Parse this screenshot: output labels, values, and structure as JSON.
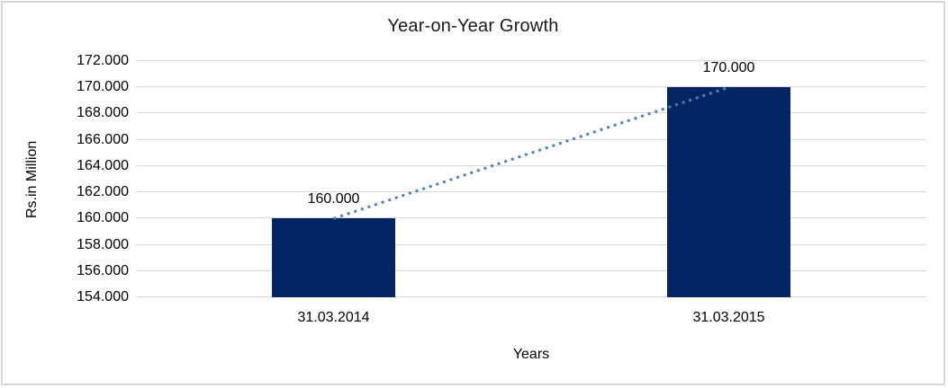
{
  "chart_data": {
    "type": "bar",
    "title": "Year-on-Year Growth",
    "categories": [
      "31.03.2014",
      "31.03.2015"
    ],
    "values": [
      160000,
      170000
    ],
    "value_labels": [
      "160.000",
      "170.000"
    ],
    "xlabel": "Years",
    "ylabel": "Rs.in Million",
    "ylim": [
      154000,
      172000
    ],
    "ytick_step": 2000,
    "ytick_labels": [
      "154.000",
      "156.000",
      "158.000",
      "160.000",
      "162.000",
      "164.000",
      "166.000",
      "168.000",
      "170.000",
      "172.000"
    ],
    "grid": true,
    "legend": false,
    "trendline": {
      "type": "linear",
      "style": "dotted"
    },
    "colors": {
      "bar": "#042563",
      "trendline": "#4f81bd",
      "gridline": "#d9d9d9",
      "axis_line": "#d9d9d9",
      "frame_border": "#d6d6d6",
      "title_text": "#1a1a1a",
      "label_text": "#000000"
    }
  }
}
